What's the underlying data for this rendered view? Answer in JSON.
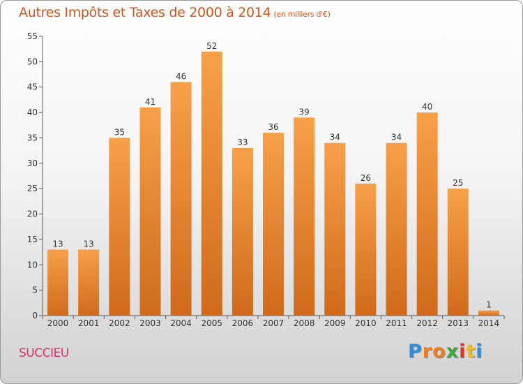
{
  "chart_data": {
    "type": "bar",
    "title": "Autres Impôts et Taxes de 2000 à 2014",
    "unit": "(en milliers d'€)",
    "categories": [
      "2000",
      "2001",
      "2002",
      "2003",
      "2004",
      "2005",
      "2006",
      "2007",
      "2008",
      "2009",
      "2010",
      "2011",
      "2012",
      "2013",
      "2014"
    ],
    "values": [
      13,
      13,
      35,
      41,
      46,
      52,
      33,
      36,
      39,
      34,
      26,
      34,
      40,
      25,
      1
    ],
    "yticks": [
      0,
      5,
      10,
      15,
      20,
      25,
      30,
      35,
      40,
      45,
      50,
      55
    ],
    "ylim": [
      0,
      55
    ],
    "grid": false,
    "colors": {
      "bar_light": "#f7a04a",
      "bar_dark": "#d06a1a",
      "title": "#cc5522"
    }
  },
  "footer": {
    "place": "SUCCIEU",
    "brand_letters": [
      "P",
      "r",
      "o",
      "x",
      "i",
      "t",
      "i"
    ],
    "brand_colors": [
      "#2d8fdc",
      "#f07d1a",
      "#f07d1a",
      "#3aa935",
      "#e2352e",
      "#f2c014",
      "#2d8fdc"
    ]
  }
}
